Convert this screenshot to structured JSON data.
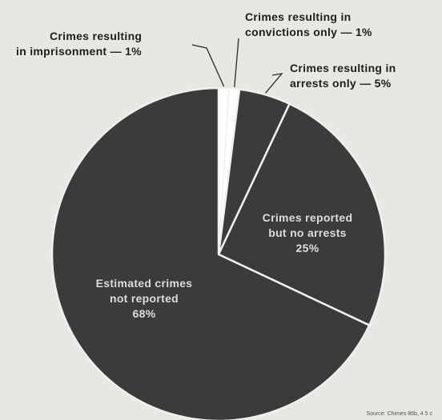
{
  "chart_data": {
    "type": "pie",
    "title": "",
    "slices": [
      {
        "label_lines": [
          "Crimes resulting",
          "in imprisonment — 1%"
        ],
        "value": 1
      },
      {
        "label_lines": [
          "Crimes resulting in",
          "convictions only — 1%"
        ],
        "value": 1
      },
      {
        "label_lines": [
          "Crimes resulting in",
          "arrests only — 5%"
        ],
        "value": 5
      },
      {
        "label_lines": [
          "Crimes reported",
          "but no arrests",
          "25%"
        ],
        "value": 25
      },
      {
        "label_lines": [
          "Estimated crimes",
          "not reported",
          "68%"
        ],
        "value": 68
      }
    ],
    "colors": {
      "slice_fill": "#3b3b3b",
      "separator": "#f0f0f0",
      "small_slice_fill": "#ffffff",
      "background": "#e9e7e2"
    },
    "start_angle_deg": 0,
    "direction": "clockwise"
  },
  "source_note": "Source: Chimes 86b, 4 5 c"
}
